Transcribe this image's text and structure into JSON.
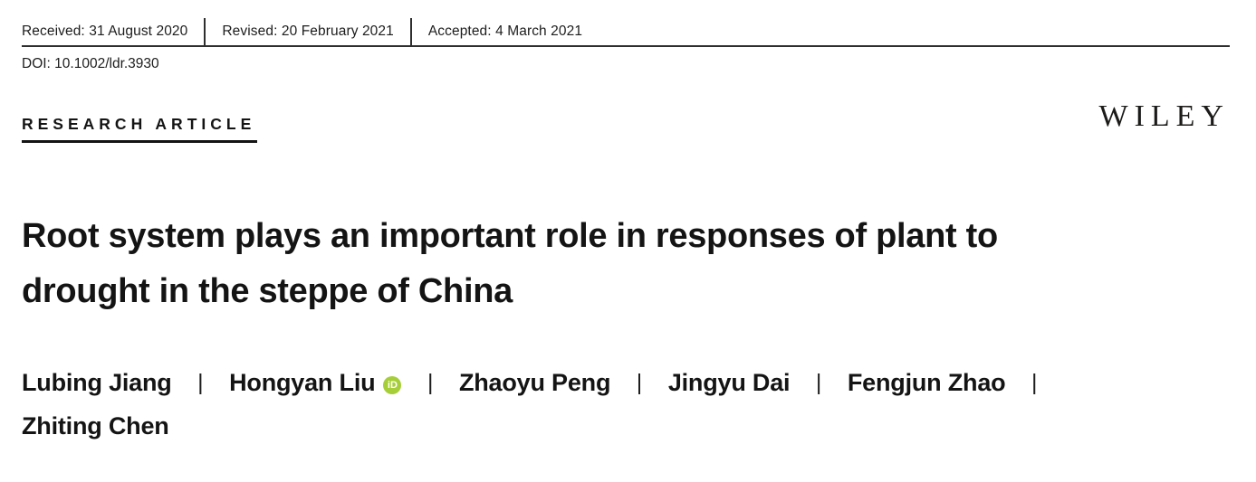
{
  "meta_bar": {
    "received": "Received: 31 August 2020",
    "revised": "Revised: 20 February 2021",
    "accepted": "Accepted: 4 March 2021"
  },
  "doi": "DOI: 10.1002/ldr.3930",
  "article_type": "RESEARCH ARTICLE",
  "publisher_logo": "WILEY",
  "title": {
    "line1": "Root system plays an important role in responses of plant to",
    "line2": "drought in the steppe of China"
  },
  "authors": [
    {
      "name": "Lubing Jiang",
      "has_orcid": false
    },
    {
      "name": "Hongyan Liu",
      "has_orcid": true
    },
    {
      "name": "Zhaoyu Peng",
      "has_orcid": false
    },
    {
      "name": "Jingyu Dai",
      "has_orcid": false
    },
    {
      "name": "Fengjun Zhao",
      "has_orcid": false
    },
    {
      "name": "Zhiting Chen",
      "has_orcid": false
    }
  ],
  "author_separator": "|",
  "orcid": {
    "label": "iD",
    "color": "#A6CE39"
  },
  "colors": {
    "text": "#1d1d1d",
    "rule": "#2e2e2e"
  }
}
